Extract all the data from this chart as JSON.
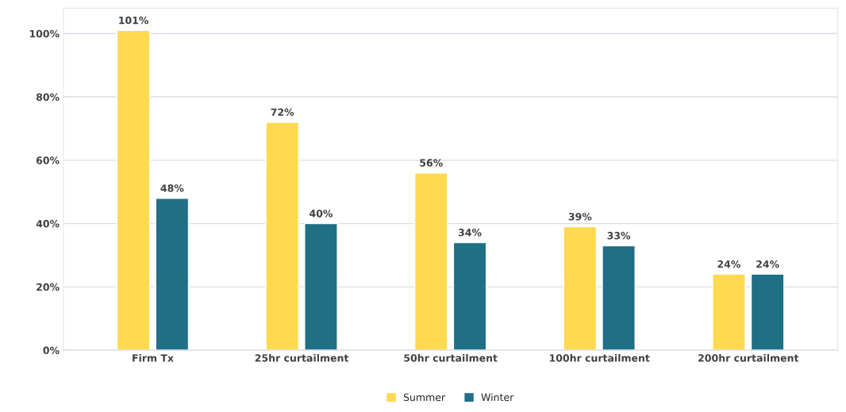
{
  "chart_data": {
    "type": "bar",
    "categories": [
      "Firm Tx",
      "25hr curtailment",
      "50hr curtailment",
      "100hr curtailment",
      "200hr curtailment"
    ],
    "series": [
      {
        "name": "Summer",
        "color": "#ffd94f",
        "values": [
          101,
          72,
          56,
          39,
          24
        ],
        "value_labels": [
          "101%",
          "72%",
          "56%",
          "39%",
          "24%"
        ]
      },
      {
        "name": "Winter",
        "color": "#1f6f86",
        "values": [
          48,
          40,
          34,
          33,
          24
        ],
        "value_labels": [
          "48%",
          "40%",
          "34%",
          "33%",
          "24%"
        ]
      }
    ],
    "ylim": [
      0,
      108
    ],
    "yticks": [
      {
        "value": 0,
        "label": "0%"
      },
      {
        "value": 20,
        "label": "20%"
      },
      {
        "value": 40,
        "label": "40%"
      },
      {
        "value": 60,
        "label": "60%"
      },
      {
        "value": 80,
        "label": "80%"
      },
      {
        "value": 100,
        "label": "100%"
      }
    ],
    "grid": "y",
    "legend": "bottom"
  }
}
